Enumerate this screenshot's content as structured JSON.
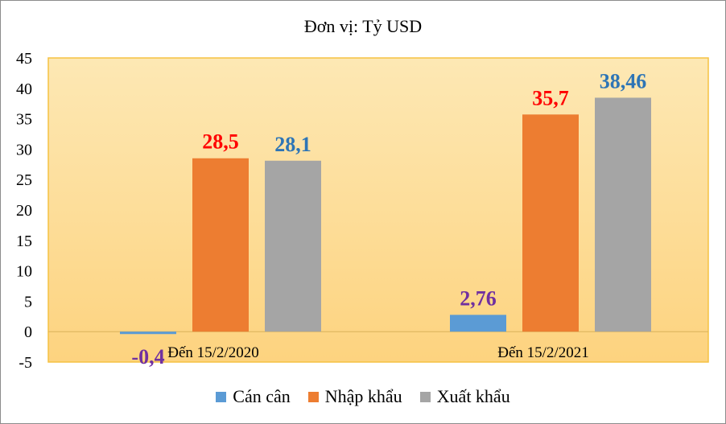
{
  "chart_data": {
    "type": "bar",
    "title": "Đơn vị: Tỷ USD",
    "categories": [
      "Đến 15/2/2020",
      "Đến 15/2/2021"
    ],
    "series": [
      {
        "name": "Cán cân",
        "values": [
          -0.4,
          2.76
        ],
        "labels": [
          "-0,4",
          "2,76"
        ],
        "color": "#5b9bd5",
        "label_color": "#7030a0"
      },
      {
        "name": "Nhập khẩu",
        "values": [
          28.5,
          35.7
        ],
        "labels": [
          "28,5",
          "35,7"
        ],
        "color": "#ed7d31",
        "label_color": "#ff0000"
      },
      {
        "name": "Xuất khẩu",
        "values": [
          28.1,
          38.46
        ],
        "labels": [
          "28,1",
          "38,46"
        ],
        "color": "#a5a5a5",
        "label_color": "#2e75b6"
      }
    ],
    "yticks": [
      45,
      40,
      35,
      30,
      25,
      20,
      15,
      10,
      5,
      0,
      -5
    ],
    "ylim": [
      -5,
      45
    ],
    "plot_background": [
      "#fde8b4",
      "#fdd37f"
    ],
    "plot_border": "#f5c242",
    "legend_position": "bottom"
  }
}
